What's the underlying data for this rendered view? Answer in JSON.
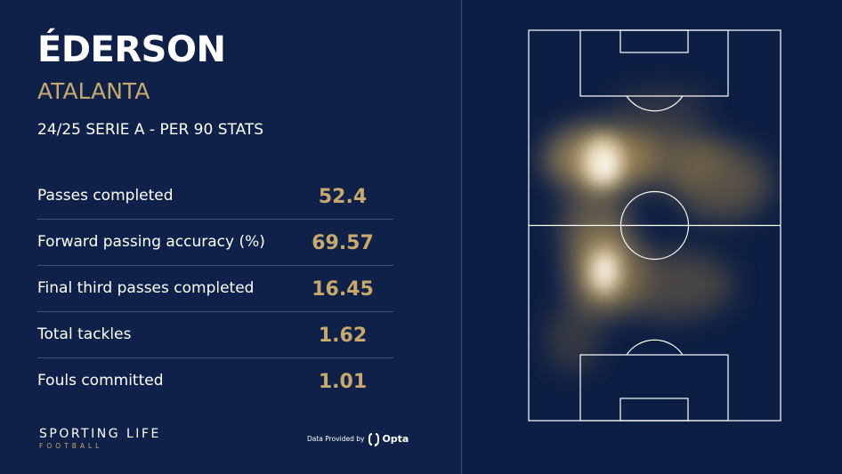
{
  "player": {
    "name": "ÉDERSON",
    "team": "ATALANTA",
    "subtitle": "24/25 SERIE A - PER 90 STATS"
  },
  "stats": [
    {
      "label": "Passes completed",
      "value": "52.4"
    },
    {
      "label": "Forward passing accuracy (%)",
      "value": "69.57"
    },
    {
      "label": "Final third passes completed",
      "value": "16.45"
    },
    {
      "label": "Total tackles",
      "value": "1.62"
    },
    {
      "label": "Fouls committed",
      "value": "1.01"
    }
  ],
  "branding": {
    "title": "SPORTING LIFE",
    "subtitle": "FOOTBALL"
  },
  "provider": {
    "text": "Data Provided by",
    "name": "Opta",
    "icon": "opta-logo-icon"
  },
  "heatmap": {
    "icon": "pitch-heatmap",
    "colors": {
      "background": "#0f2149",
      "pitch_lines": "#ffffff",
      "heat": "#e6c98a",
      "hot": "#ffffff",
      "accent": "#c8a96b"
    }
  }
}
